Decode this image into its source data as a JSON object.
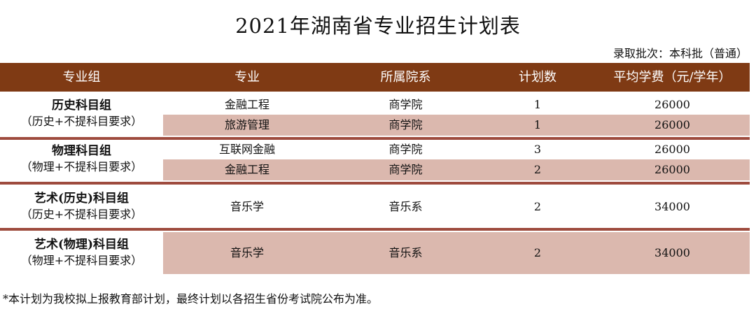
{
  "title": "2021年湖南省专业招生计划表",
  "batch_label": "录取批次：本科批（普通）",
  "columns": [
    "专业组",
    "专业",
    "所属院系",
    "计划数",
    "平均学费（元/学年）"
  ],
  "groups": [
    {
      "name": "历史科目组",
      "subtitle": "（历史+不提科目要求）",
      "rows": [
        {
          "major": "金融工程",
          "dept": "商学院",
          "plan": "1",
          "fee": "26000"
        },
        {
          "major": "旅游管理",
          "dept": "商学院",
          "plan": "1",
          "fee": "26000"
        }
      ]
    },
    {
      "name": "物理科目组",
      "subtitle": "（物理+不提科目要求）",
      "rows": [
        {
          "major": "互联网金融",
          "dept": "商学院",
          "plan": "3",
          "fee": "26000"
        },
        {
          "major": "金融工程",
          "dept": "商学院",
          "plan": "2",
          "fee": "26000"
        }
      ]
    },
    {
      "name": "艺术(历史)科目组",
      "subtitle": "（历史+不提科目要求）",
      "rows": [
        {
          "major": "音乐学",
          "dept": "音乐系",
          "plan": "2",
          "fee": "34000"
        }
      ]
    },
    {
      "name": "艺术(物理)科目组",
      "subtitle": "（物理+不提科目要求）",
      "rows": [
        {
          "major": "音乐学",
          "dept": "音乐系",
          "plan": "2",
          "fee": "34000"
        }
      ]
    }
  ],
  "footnote": "*本计划为我校拟上报教育部计划，最终计划以各招生省份考试院公布为准。",
  "colors": {
    "header_bg": "#7f3a14",
    "separator": "#9e4b3e",
    "band": "#dbb8ae"
  }
}
